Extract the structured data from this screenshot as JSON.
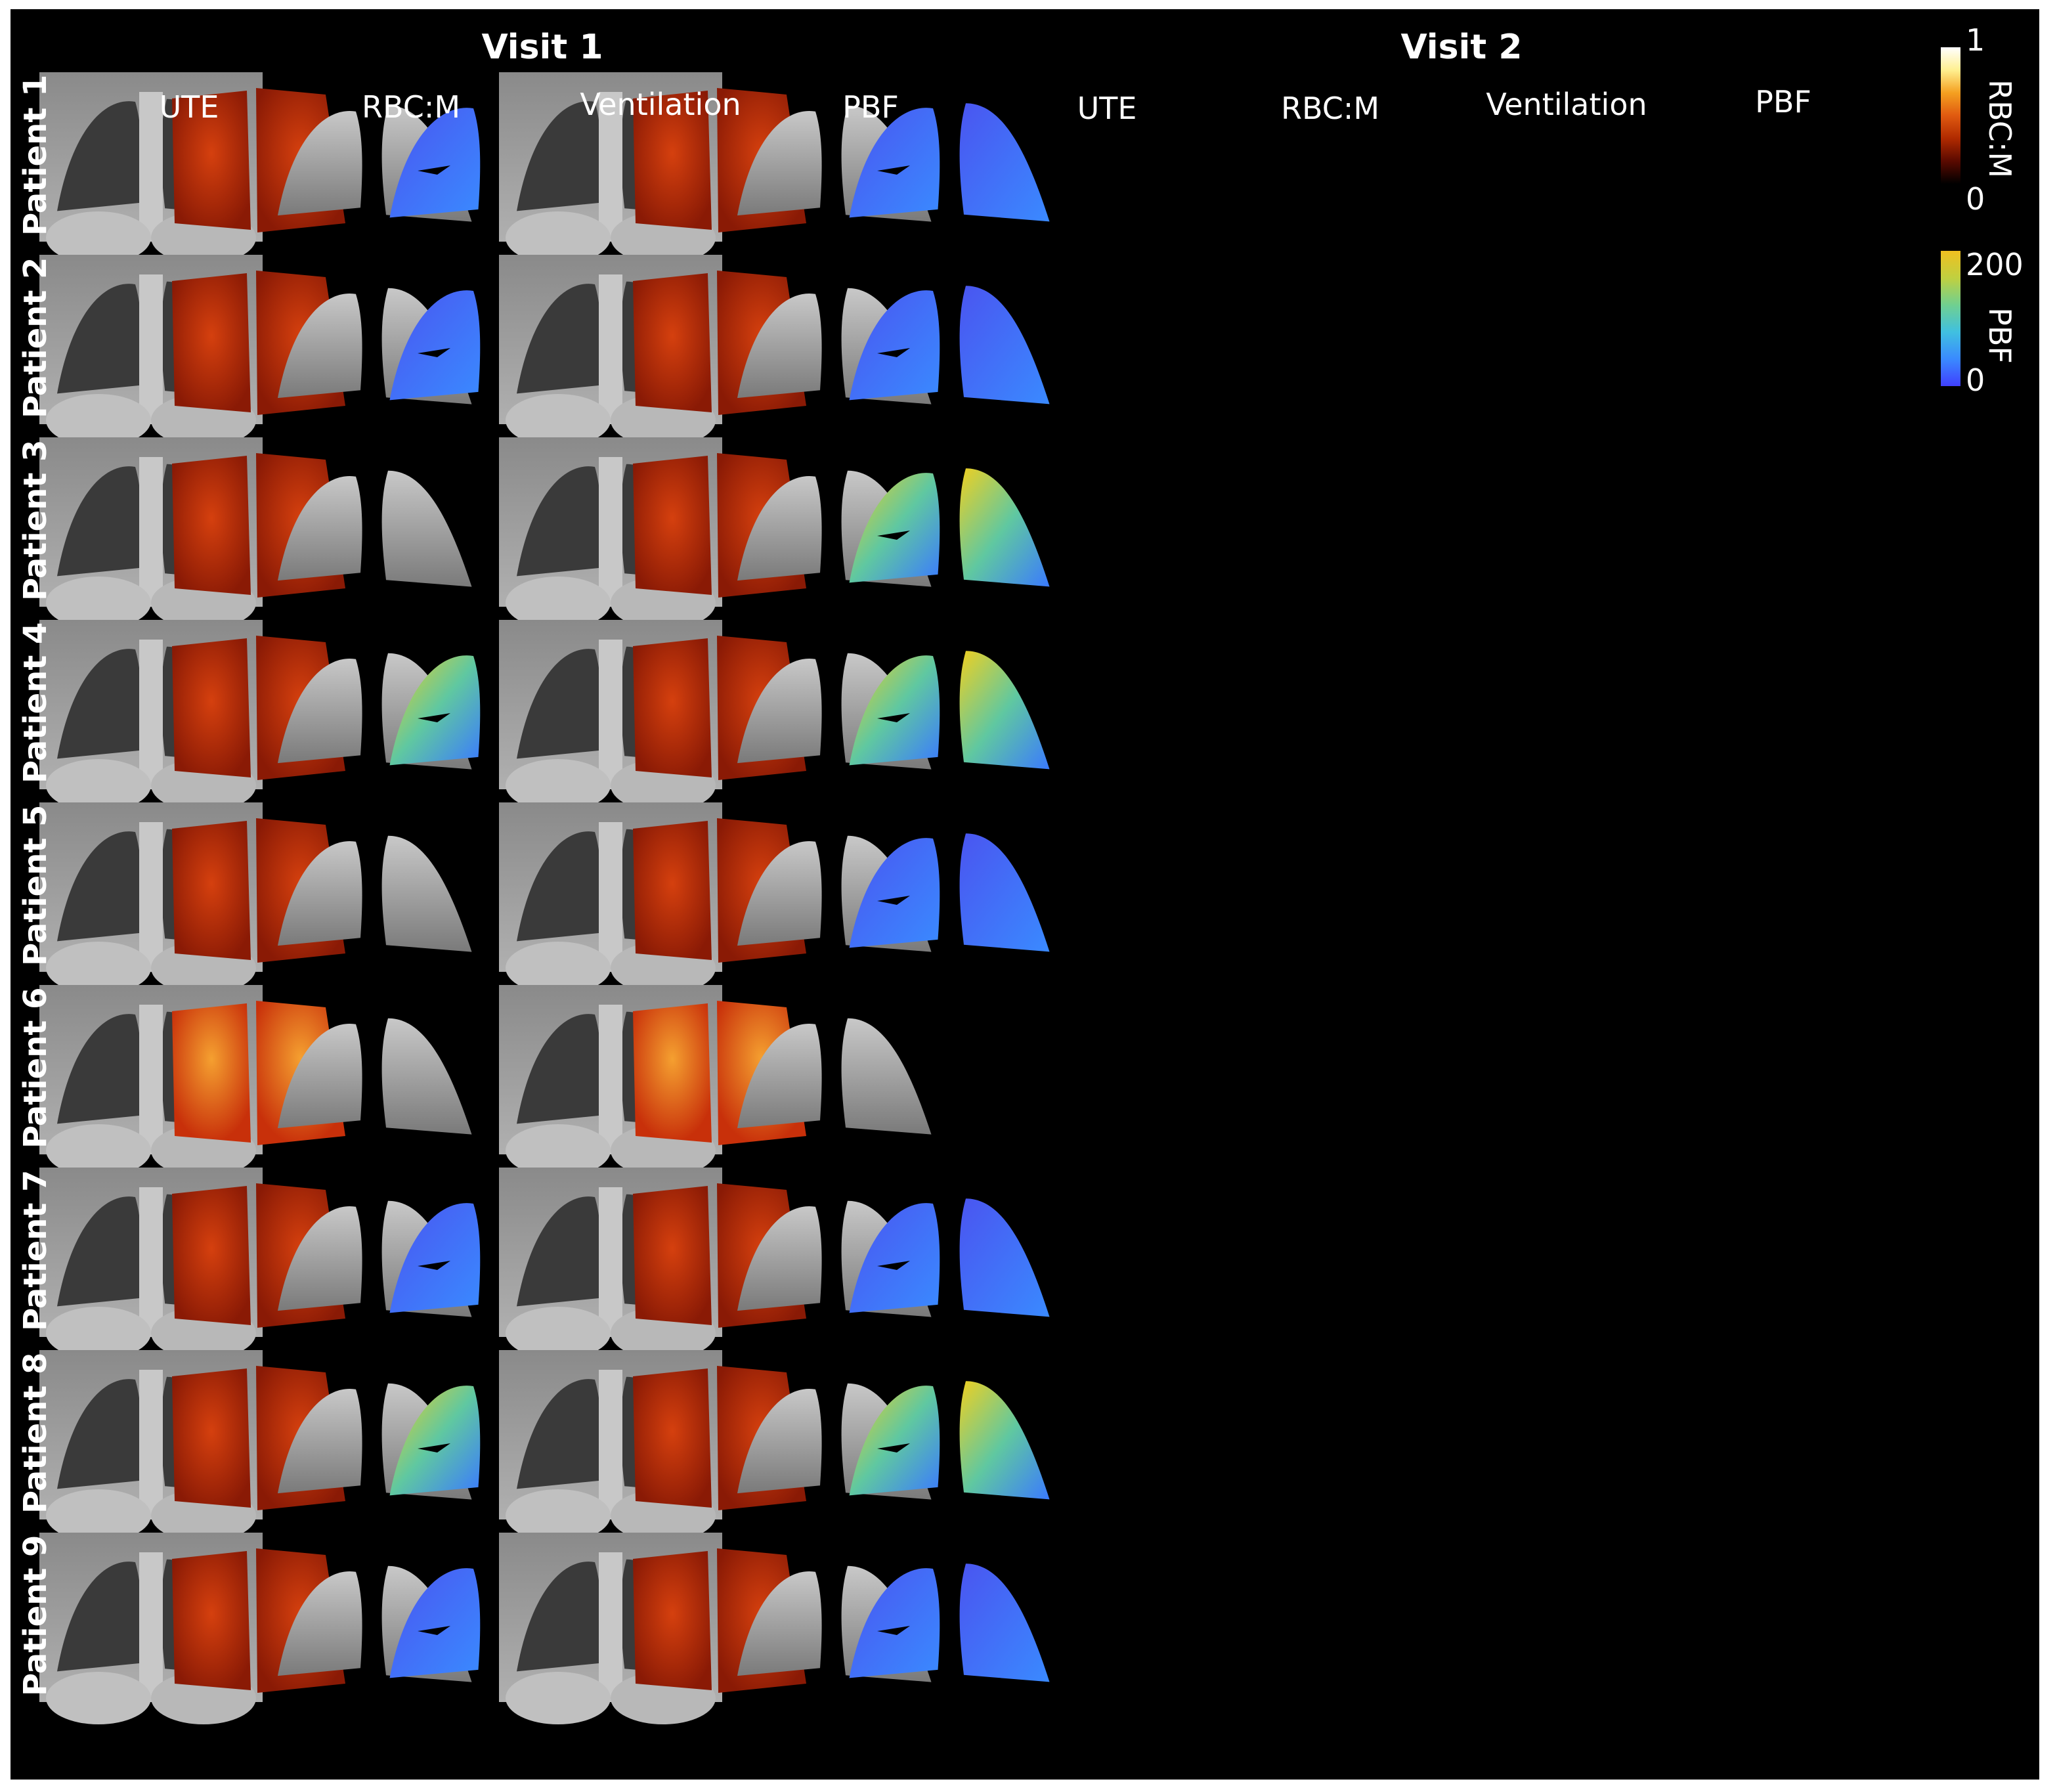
{
  "visits": [
    {
      "label": "Visit 1",
      "columns": [
        "UTE",
        "RBC:M",
        "Ventilation",
        "PBF"
      ]
    },
    {
      "label": "Visit 2",
      "columns": [
        "UTE",
        "RBC:M",
        "Ventilation",
        "PBF"
      ]
    }
  ],
  "patients": [
    "Patient 1",
    "Patient 2",
    "Patient 3",
    "Patient 4",
    "Patient 5",
    "Patient 6",
    "Patient 7",
    "Patient 8",
    "Patient 9"
  ],
  "pbf_present": [
    [
      true,
      true
    ],
    [
      true,
      true
    ],
    [
      false,
      true
    ],
    [
      true,
      true
    ],
    [
      false,
      true
    ],
    [
      false,
      false
    ],
    [
      true,
      true
    ],
    [
      true,
      true
    ],
    [
      true,
      true
    ]
  ],
  "colorbars": {
    "rbcm": {
      "label": "RBC:M",
      "max": "1",
      "min": "0",
      "colors": [
        "#000000",
        "#5a0a00",
        "#b02a00",
        "#e05a10",
        "#f5a020",
        "#fff090",
        "#ffffff"
      ]
    },
    "pbf": {
      "label": "PBF",
      "max": "200",
      "min": "0",
      "colors": [
        "#4040ff",
        "#3a8aff",
        "#40c0e0",
        "#70d090",
        "#c0d040",
        "#f0c020"
      ]
    }
  },
  "colors": {
    "background": "#000000",
    "rbc": "#b82a08",
    "pbf_low": "#4a55f0",
    "pbf_high": "#f0d020"
  }
}
